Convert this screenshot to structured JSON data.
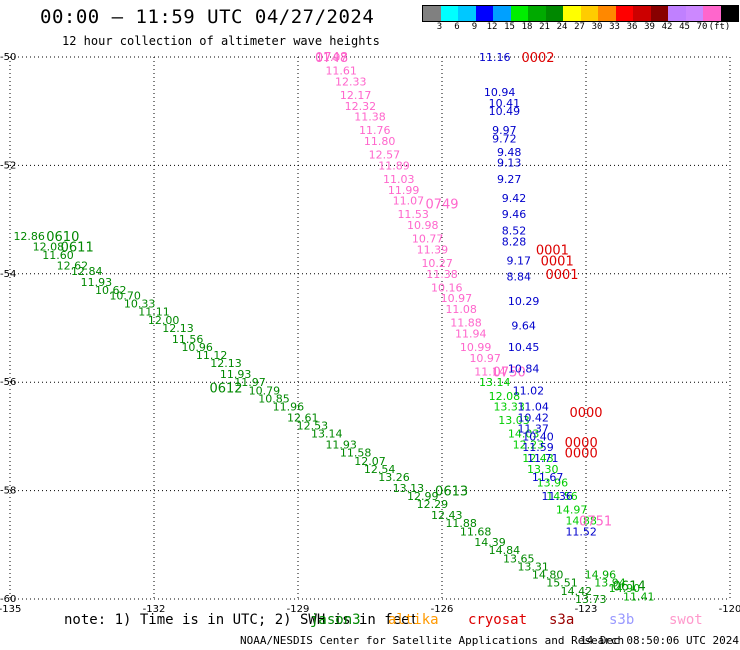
{
  "header": {
    "title": "00:00 – 11:59 UTC 04/27/2024",
    "subtitle": "12 hour collection of altimeter wave heights"
  },
  "legend": {
    "colors": [
      "#808080",
      "#00ffff",
      "#00c8ff",
      "#0000ff",
      "#00a0ff",
      "#00ee00",
      "#00aa00",
      "#008800",
      "#ffff00",
      "#ffcc00",
      "#ff8800",
      "#ff0000",
      "#cc0000",
      "#880000",
      "#c080ff",
      "#cc88ff",
      "#ff66cc",
      "#000000"
    ],
    "labels": [
      "3",
      "6",
      "9",
      "12",
      "15",
      "18",
      "21",
      "24",
      "27",
      "30",
      "33",
      "36",
      "39",
      "42",
      "45",
      "70",
      "(ft)"
    ]
  },
  "footer": {
    "note": "note:  1) Time is in UTC;  2) SWH is in feet",
    "credit": "NOAA/NESDIS Center for Satellite Applications and Research",
    "timestamp": "14 Dec 08:50:06 UTC 2024",
    "satellites": [
      {
        "name": "jason3",
        "color": "#008800"
      },
      {
        "name": "altika",
        "color": "#ff9900"
      },
      {
        "name": "cryosat",
        "color": "#dd0000"
      },
      {
        "name": "s3a",
        "color": "#990000"
      },
      {
        "name": "s3b",
        "color": "#9999ff"
      },
      {
        "name": "swot",
        "color": "#ff99cc"
      }
    ]
  },
  "chart_data": {
    "type": "scatter",
    "xlim": [
      -135,
      -120
    ],
    "ylim": [
      -60,
      -50
    ],
    "x_ticks": [
      -135,
      -132,
      -129,
      -126,
      -123,
      -120
    ],
    "y_ticks": [
      -50,
      -52,
      -54,
      -56,
      -58,
      -60
    ],
    "x_tick_labels": [
      "-135",
      "-132",
      "-129",
      "-126",
      "-123",
      "-120"
    ],
    "y_tick_labels": [
      "-50",
      "-52",
      "-54",
      "-56",
      "-58",
      "-60"
    ],
    "grid": true,
    "tracks": [
      {
        "id": "jason3-a",
        "color": "#008800",
        "times": [
          {
            "label": "0610",
            "x": -133.9,
            "y": -53.3
          },
          {
            "label": "0611",
            "x": -133.6,
            "y": -53.5
          },
          {
            "label": "0612",
            "x": -130.5,
            "y": -56.1
          }
        ],
        "points": [
          [
            -134.6,
            -53.3,
            "12.86"
          ],
          [
            -134.2,
            -53.5,
            "12.08"
          ],
          [
            -134.0,
            -53.65,
            "11.60"
          ],
          [
            -133.7,
            -53.85,
            "12.62"
          ],
          [
            -133.4,
            -53.95,
            "12.84"
          ],
          [
            -133.2,
            -54.15,
            "11.93"
          ],
          [
            -132.9,
            -54.3,
            "10.62"
          ],
          [
            -132.6,
            -54.4,
            "10.70"
          ],
          [
            -132.3,
            -54.55,
            "10.33"
          ],
          [
            -132.0,
            -54.7,
            "11.11"
          ],
          [
            -131.8,
            -54.85,
            "12.00"
          ],
          [
            -131.5,
            -55.0,
            "12.13"
          ],
          [
            -131.3,
            -55.2,
            "11.56"
          ],
          [
            -131.1,
            -55.35,
            "10.96"
          ],
          [
            -130.8,
            -55.5,
            "11.12"
          ],
          [
            -130.5,
            -55.65,
            "12.13"
          ],
          [
            -130.3,
            -55.85,
            "11.93"
          ],
          [
            -130.0,
            -56.0,
            "11.97"
          ],
          [
            -129.7,
            -56.15,
            "10.79"
          ],
          [
            -129.5,
            -56.3,
            "10.85"
          ],
          [
            -129.2,
            -56.45,
            "11.96"
          ],
          [
            -128.9,
            -56.65,
            "12.61"
          ],
          [
            -128.7,
            -56.8,
            "12.53"
          ],
          [
            -128.4,
            -56.95,
            "13.14"
          ],
          [
            -128.1,
            -57.15,
            "11.93"
          ],
          [
            -127.8,
            -57.3,
            "11.58"
          ],
          [
            -127.5,
            -57.45,
            "12.07"
          ],
          [
            -127.3,
            -57.6,
            "12.54"
          ],
          [
            -127.0,
            -57.75,
            "13.26"
          ],
          [
            -126.7,
            -57.95,
            "13.13"
          ],
          [
            -126.4,
            -58.1,
            "12.99"
          ],
          [
            -126.2,
            -58.25,
            "12.29"
          ],
          [
            -125.9,
            -58.45,
            "12.43"
          ]
        ]
      },
      {
        "id": "jason3-b",
        "color": "#008800",
        "times": [
          {
            "label": "0613",
            "x": -125.8,
            "y": -58.0
          },
          {
            "label": "0614",
            "x": -122.1,
            "y": -59.75
          }
        ],
        "points": [
          [
            -125.6,
            -58.6,
            "11.88"
          ],
          [
            -125.3,
            -58.75,
            "11.68"
          ],
          [
            -125.0,
            -58.95,
            "14.39"
          ],
          [
            -124.7,
            -59.1,
            "14.84"
          ],
          [
            -124.4,
            -59.25,
            "13.65"
          ],
          [
            -124.1,
            -59.4,
            "13.31"
          ],
          [
            -123.8,
            -59.55,
            "14.80"
          ],
          [
            -123.5,
            -59.7,
            "15.51"
          ],
          [
            -123.2,
            -59.85,
            "14.42"
          ],
          [
            -122.9,
            -60.0,
            "13.73"
          ]
        ]
      },
      {
        "id": "jason3-c",
        "color": "#00aa00",
        "times": [],
        "points": [
          [
            -122.7,
            -59.55,
            "14.96"
          ],
          [
            -122.5,
            -59.7,
            "13.94"
          ],
          [
            -122.2,
            -59.8,
            "14.90"
          ],
          [
            -121.9,
            -59.95,
            "11.41"
          ]
        ]
      },
      {
        "id": "swot-a",
        "color": "#ff66cc",
        "times": [
          {
            "label": "0748",
            "x": -128.3,
            "y": -50.0
          },
          {
            "label": "0749",
            "x": -126.0,
            "y": -52.7
          }
        ],
        "points": [
          [
            -128.3,
            -50.0,
            "11.97"
          ],
          [
            -128.1,
            -50.25,
            "11.61"
          ],
          [
            -127.9,
            -50.45,
            "12.33"
          ],
          [
            -127.8,
            -50.7,
            "12.17"
          ],
          [
            -127.7,
            -50.9,
            "12.32"
          ],
          [
            -127.5,
            -51.1,
            "11.38"
          ],
          [
            -127.4,
            -51.35,
            "11.76"
          ],
          [
            -127.3,
            -51.55,
            "11.80"
          ],
          [
            -127.2,
            -51.8,
            "12.57"
          ],
          [
            -127.0,
            -52.0,
            "11.89"
          ],
          [
            -126.9,
            -52.25,
            "11.03"
          ],
          [
            -126.8,
            -52.45,
            "11.99"
          ],
          [
            -126.7,
            -52.65,
            "11.07"
          ],
          [
            -126.6,
            -52.9,
            "11.53"
          ],
          [
            -126.4,
            -53.1,
            "10.98"
          ],
          [
            -126.3,
            -53.35,
            "10.77"
          ],
          [
            -126.2,
            -53.55,
            "11.39"
          ],
          [
            -126.1,
            -53.8,
            "10.27"
          ],
          [
            -126.0,
            -54.0,
            "11.38"
          ],
          [
            -125.9,
            -54.25,
            "10.16"
          ],
          [
            -125.7,
            -54.45,
            "10.97"
          ],
          [
            -125.6,
            -54.65,
            "11.08"
          ],
          [
            -125.5,
            -54.9,
            "11.88"
          ],
          [
            -125.4,
            -55.1,
            "11.94"
          ],
          [
            -125.3,
            -55.35,
            "10.99"
          ],
          [
            -125.1,
            -55.55,
            "10.97"
          ],
          [
            -125.0,
            -55.8,
            "11.14"
          ]
        ]
      },
      {
        "id": "swot-b",
        "color": "#00cc00",
        "times": [],
        "points": [
          [
            -124.9,
            -56.0,
            "13.14"
          ],
          [
            -124.7,
            -56.25,
            "12.08"
          ],
          [
            -124.6,
            -56.45,
            "13.33"
          ],
          [
            -124.5,
            -56.7,
            "13.03"
          ],
          [
            -124.3,
            -56.95,
            "14.03"
          ],
          [
            -124.2,
            -57.15,
            "12.23"
          ],
          [
            -124.0,
            -57.4,
            "12.43"
          ],
          [
            -123.9,
            -57.6,
            "13.30"
          ],
          [
            -123.7,
            -57.85,
            "13.96"
          ],
          [
            -123.5,
            -58.1,
            "14.56"
          ],
          [
            -123.3,
            -58.35,
            "14.97"
          ],
          [
            -123.1,
            -58.55,
            "14.88"
          ]
        ]
      },
      {
        "id": "swot-c",
        "color": "#ff66cc",
        "times": [
          {
            "label": "0751",
            "x": -122.8,
            "y": -58.55
          },
          {
            "label": "0750",
            "x": -124.6,
            "y": -55.8
          }
        ],
        "points": []
      },
      {
        "id": "cryosat-a",
        "color": "#dd0000",
        "times": [
          {
            "label": "0002",
            "x": -124.0,
            "y": -50.0
          },
          {
            "label": "0001",
            "x": -123.7,
            "y": -53.55
          },
          {
            "label": "0001",
            "x": -123.6,
            "y": -53.75
          },
          {
            "label": "0001",
            "x": -123.5,
            "y": -54.0
          },
          {
            "label": "0000",
            "x": -123.0,
            "y": -56.55
          },
          {
            "label": "0000",
            "x": -123.1,
            "y": -57.1
          },
          {
            "label": "0000",
            "x": -123.1,
            "y": -57.3
          }
        ],
        "points": []
      },
      {
        "id": "cryosat-pts",
        "color": "#0000cc",
        "times": [],
        "points": [
          [
            -124.9,
            -50.0,
            "11.16"
          ],
          [
            -124.8,
            -50.65,
            "10.94"
          ],
          [
            -124.7,
            -50.85,
            "10.41"
          ],
          [
            -124.7,
            -51.0,
            "10.49"
          ],
          [
            -124.7,
            -51.35,
            "9.97"
          ],
          [
            -124.7,
            -51.5,
            "9.72"
          ],
          [
            -124.6,
            -51.75,
            "9.48"
          ],
          [
            -124.6,
            -51.95,
            "9.13"
          ],
          [
            -124.6,
            -52.25,
            "9.27"
          ],
          [
            -124.5,
            -52.6,
            "9.42"
          ],
          [
            -124.5,
            -52.9,
            "9.46"
          ],
          [
            -124.5,
            -53.2,
            "8.52"
          ],
          [
            -124.5,
            -53.4,
            "8.28"
          ],
          [
            -124.4,
            -53.75,
            "9.17"
          ],
          [
            -124.4,
            -54.05,
            "8.84"
          ],
          [
            -124.3,
            -54.5,
            "10.29"
          ],
          [
            -124.3,
            -54.95,
            "9.64"
          ],
          [
            -124.3,
            -55.35,
            "10.45"
          ],
          [
            -124.3,
            -55.75,
            "10.84"
          ],
          [
            -124.2,
            -56.15,
            "11.02"
          ],
          [
            -124.1,
            -56.45,
            "11.04"
          ],
          [
            -124.1,
            -56.65,
            "10.42"
          ],
          [
            -124.1,
            -56.85,
            "11.37"
          ],
          [
            -124.0,
            -57.0,
            "10.40"
          ],
          [
            -124.0,
            -57.2,
            "11.59"
          ],
          [
            -123.9,
            -57.4,
            "11.71"
          ],
          [
            -123.8,
            -57.75,
            "11.67"
          ],
          [
            -123.6,
            -58.1,
            "11.36"
          ],
          [
            -123.1,
            -58.75,
            "11.52"
          ]
        ]
      }
    ]
  }
}
